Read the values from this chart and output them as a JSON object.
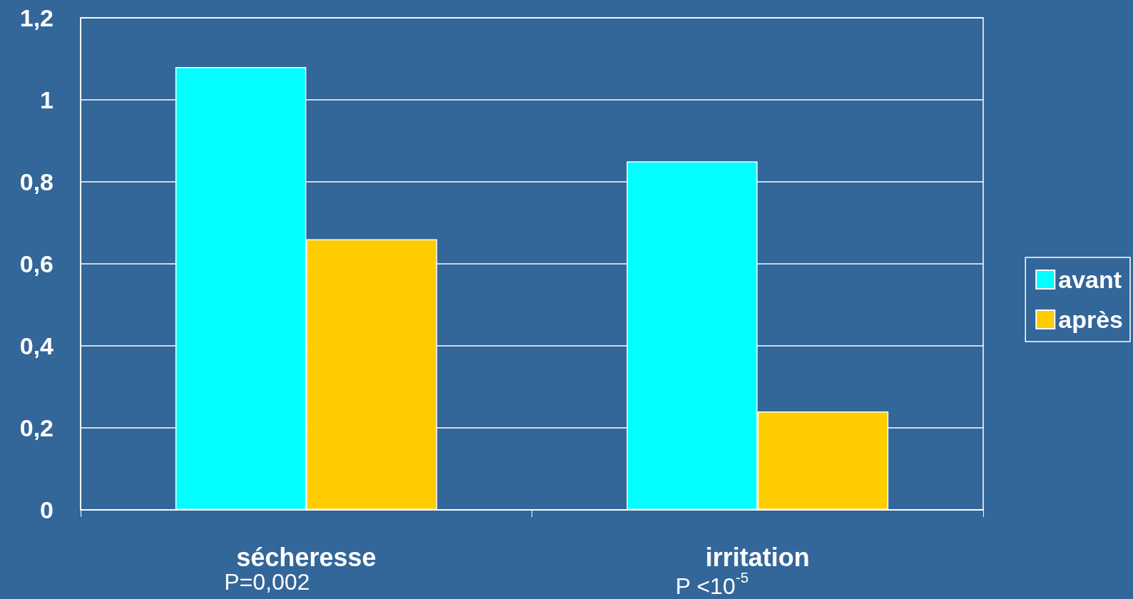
{
  "chart_data": {
    "type": "bar",
    "categories": [
      "sécheresse",
      "irritation"
    ],
    "series": [
      {
        "name": "avant",
        "color": "#00ffff",
        "values": [
          1.08,
          0.85
        ]
      },
      {
        "name": "après",
        "color": "#ffcc00",
        "values": [
          0.66,
          0.24
        ]
      }
    ],
    "ylim": [
      0,
      1.2
    ],
    "yticks": [
      0,
      {
        "value": 0.2,
        "label": "0,2"
      },
      {
        "value": 0.4,
        "label": "0,4"
      },
      {
        "value": 0.6,
        "label": "0,6"
      },
      {
        "value": 0.8,
        "label": "0,8"
      },
      1,
      {
        "value": 1.2,
        "label": "1,2"
      }
    ],
    "grid": "y",
    "legend": "right",
    "annotations": [
      "P=0,002",
      "P <10$^{-5}$"
    ]
  }
}
